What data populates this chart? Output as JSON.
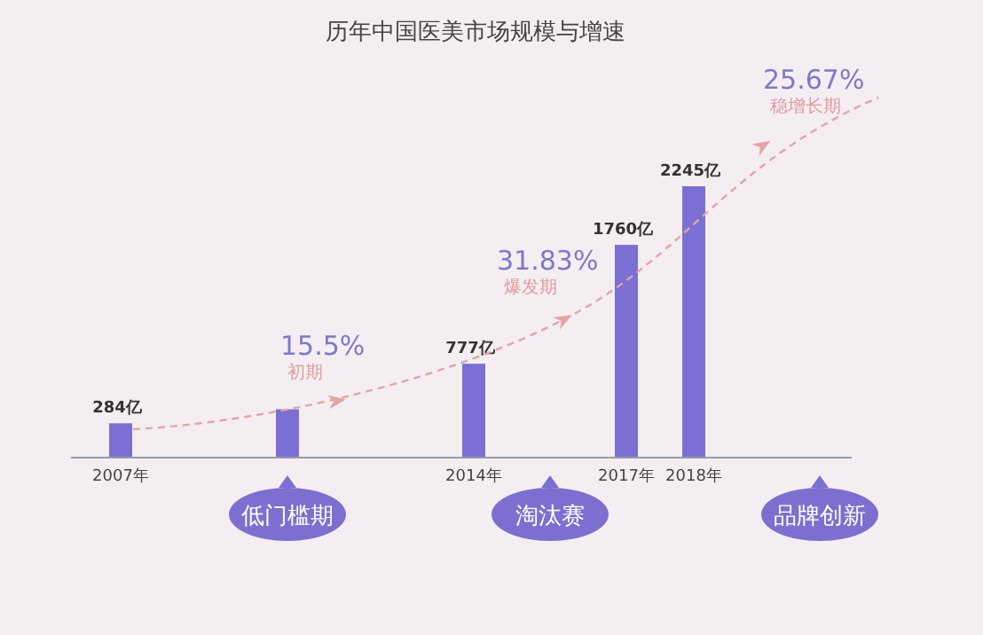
{
  "chart_data": {
    "type": "bar",
    "title": "历年中国医美市场规模与增速",
    "categories": [
      "2007年",
      null,
      "2014年",
      "2017年",
      "2018年"
    ],
    "values": [
      284,
      400,
      777,
      1760,
      2245
    ],
    "value_labels": [
      "284亿",
      null,
      "777亿",
      "1760亿",
      "2245亿"
    ],
    "color": "#7b6fd3",
    "annotations": [
      "15.5%",
      "初期",
      "31.83%",
      "爆发期",
      "25.67%",
      "稳增长期",
      "低门槛期",
      "淘汰赛",
      "品牌创新"
    ]
  }
}
